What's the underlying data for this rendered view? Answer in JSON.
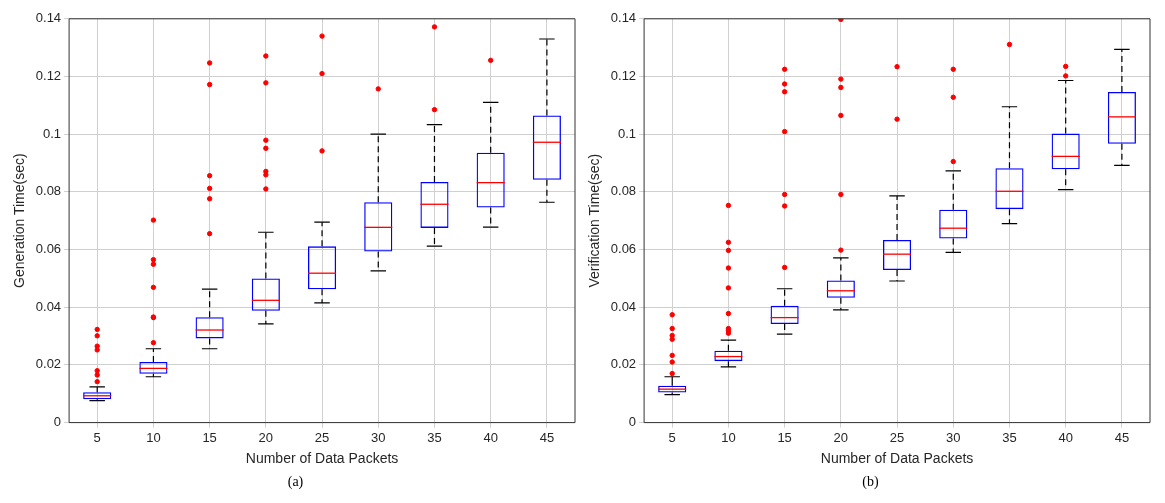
{
  "chart_data": [
    {
      "type": "box",
      "xlabel": "Number of Data Packets",
      "ylabel": "Generation Time(sec)",
      "annotations": [
        "(a)"
      ],
      "marker": "circle",
      "categories": [
        "5",
        "10",
        "15",
        "20",
        "25",
        "30",
        "35",
        "40",
        "45"
      ],
      "ylim": [
        0,
        0.14
      ],
      "yticks": [
        0,
        0.02,
        0.04,
        0.06,
        0.08,
        0.1,
        0.12,
        0.14
      ],
      "grid": true,
      "legend": false,
      "series": [
        {
          "color": "#0000ff",
          "boxes": [
            {
              "low": 0.0076,
              "q1": 0.0081,
              "median": 0.0093,
              "q3": 0.0105,
              "high": 0.0124,
              "outliers": [
                0.0323,
                0.0301,
                0.0265,
                0.0252,
                0.018,
                0.0165,
                0.0142
              ]
            },
            {
              "low": 0.0159,
              "q1": 0.0169,
              "median": 0.0188,
              "q3": 0.021,
              "high": 0.0256,
              "outliers": [
                0.0702,
                0.0565,
                0.0549,
                0.0469,
                0.0366,
                0.0364,
                0.0277
              ]
            },
            {
              "low": 0.0256,
              "q1": 0.0292,
              "median": 0.0321,
              "q3": 0.0365,
              "high": 0.0463,
              "outliers": [
                0.1247,
                0.1172,
                0.0856,
                0.0812,
                0.0776,
                0.0655
              ]
            },
            {
              "low": 0.0342,
              "q1": 0.0388,
              "median": 0.0424,
              "q3": 0.05,
              "high": 0.066,
              "outliers": [
                0.1271,
                0.1178,
                0.0979,
                0.0951,
                0.0871,
                0.0859,
                0.081
              ]
            },
            {
              "low": 0.0415,
              "q1": 0.0462,
              "median": 0.0518,
              "q3": 0.0611,
              "high": 0.0695,
              "outliers": [
                0.134,
                0.121,
                0.0942
              ]
            },
            {
              "low": 0.0526,
              "q1": 0.0593,
              "median": 0.0677,
              "q3": 0.0764,
              "high": 0.1,
              "outliers": [
                0.1157
              ]
            },
            {
              "low": 0.0612,
              "q1": 0.0675,
              "median": 0.0757,
              "q3": 0.0834,
              "high": 0.1033,
              "outliers": [
                0.1372,
                0.1085
              ]
            },
            {
              "low": 0.0678,
              "q1": 0.0746,
              "median": 0.0832,
              "q3": 0.0936,
              "high": 0.111,
              "outliers": [
                0.1256
              ]
            },
            {
              "low": 0.0764,
              "q1": 0.0842,
              "median": 0.0972,
              "q3": 0.1065,
              "high": 0.133
            }
          ]
        }
      ]
    },
    {
      "type": "box",
      "xlabel": "Number of Data Packets",
      "ylabel": "Verification Time(sec)",
      "annotations": [
        "(b)"
      ],
      "marker": "circle",
      "categories": [
        "5",
        "10",
        "15",
        "20",
        "25",
        "30",
        "35",
        "40",
        "45"
      ],
      "ylim": [
        0,
        0.14
      ],
      "yticks": [
        0,
        0.02,
        0.04,
        0.06,
        0.08,
        0.1,
        0.12,
        0.14
      ],
      "grid": true,
      "legend": false,
      "series": [
        {
          "color": "#0000ff",
          "boxes": [
            {
              "low": 0.0097,
              "q1": 0.0104,
              "median": 0.0116,
              "q3": 0.0128,
              "high": 0.0159,
              "outliers": [
                0.0374,
                0.0326,
                0.0302,
                0.0289,
                0.0233,
                0.021,
                0.017
              ]
            },
            {
              "low": 0.0193,
              "q1": 0.0213,
              "median": 0.0229,
              "q3": 0.0249,
              "high": 0.0286,
              "outliers": [
                0.0753,
                0.0625,
                0.0597,
                0.0536,
                0.0467,
                0.0378,
                0.0326,
                0.0319,
                0.031
              ]
            },
            {
              "low": 0.0307,
              "q1": 0.0342,
              "median": 0.0364,
              "q3": 0.0405,
              "high": 0.0464,
              "outliers": [
                0.1225,
                0.1174,
                0.1147,
                0.1009,
                0.0791,
                0.0751,
                0.0538
              ]
            },
            {
              "low": 0.0391,
              "q1": 0.0433,
              "median": 0.0457,
              "q3": 0.0493,
              "high": 0.0571,
              "outliers": [
                0.1398,
                0.1191,
                0.1162,
                0.1065,
                0.0791,
                0.0598
              ]
            },
            {
              "low": 0.0491,
              "q1": 0.0529,
              "median": 0.0584,
              "q3": 0.0633,
              "high": 0.0786,
              "outliers": [
                0.1234,
                0.1052
              ]
            },
            {
              "low": 0.059,
              "q1": 0.0638,
              "median": 0.0674,
              "q3": 0.0738,
              "high": 0.0873,
              "outliers": [
                0.1225,
                0.1128,
                0.0905
              ]
            },
            {
              "low": 0.069,
              "q1": 0.074,
              "median": 0.0802,
              "q3": 0.0882,
              "high": 0.1095,
              "outliers": [
                0.1311
              ]
            },
            {
              "low": 0.0808,
              "q1": 0.0878,
              "median": 0.0923,
              "q3": 0.1002,
              "high": 0.1186,
              "outliers": [
                0.1235,
                0.1202
              ]
            },
            {
              "low": 0.0892,
              "q1": 0.0967,
              "median": 0.106,
              "q3": 0.1146,
              "high": 0.1294
            }
          ]
        }
      ]
    }
  ]
}
